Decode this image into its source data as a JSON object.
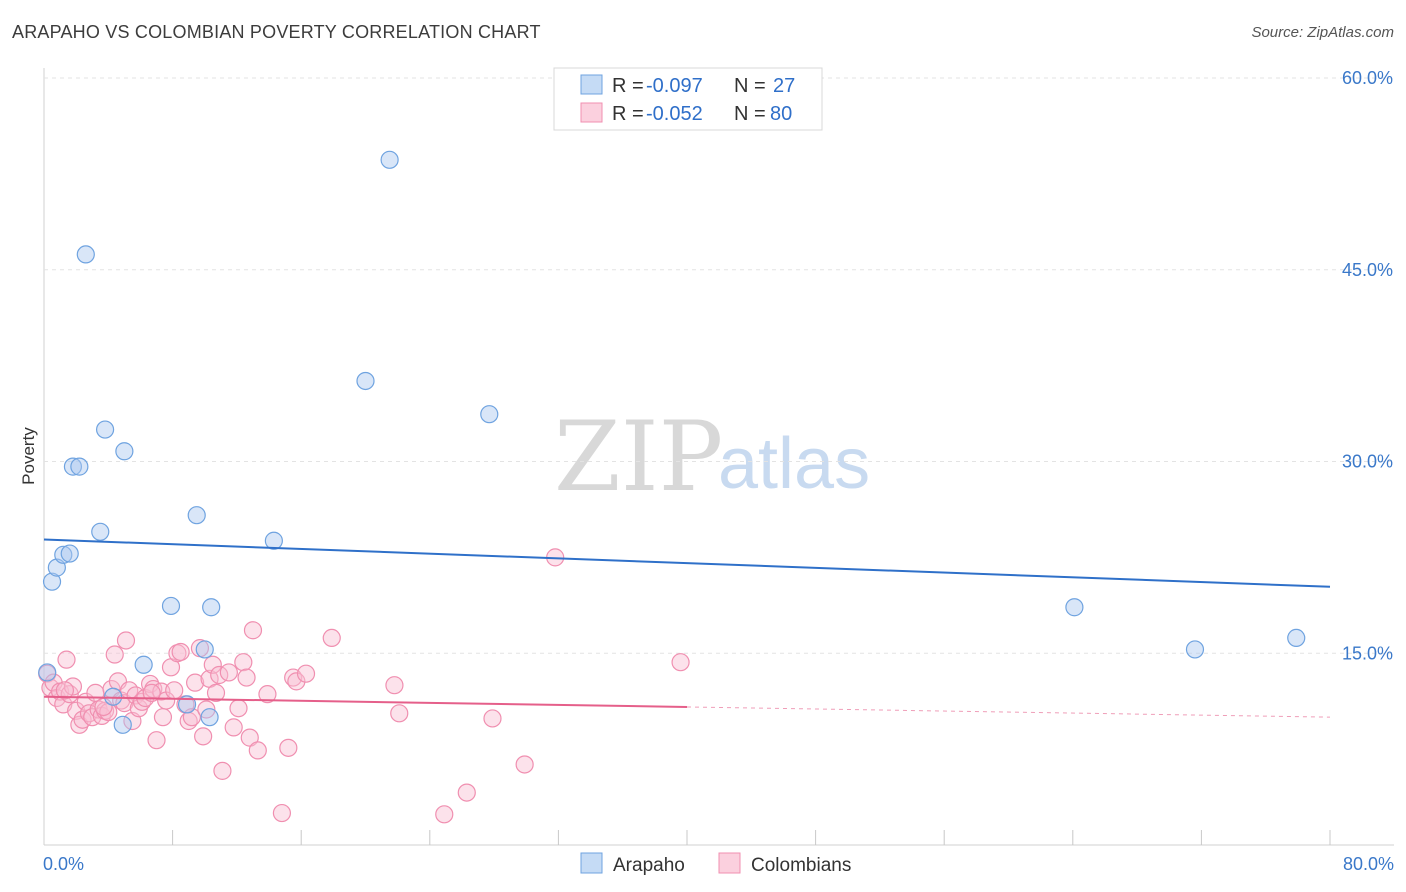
{
  "title": "ARAPAHO VS COLOMBIAN POVERTY CORRELATION CHART",
  "source": "Source: ZipAtlas.com",
  "watermark": {
    "part1": "ZIP",
    "part2": "atlas"
  },
  "legend": {
    "rows": [
      {
        "r_label": "R =",
        "r_value": "-0.097",
        "n_label": "N =",
        "n_value": "27"
      },
      {
        "r_label": "R =",
        "r_value": "-0.052",
        "n_label": "N =",
        "n_value": "80"
      }
    ]
  },
  "bottom_legend": [
    "Arapaho",
    "Colombians"
  ],
  "chart_data": {
    "type": "scatter",
    "title": "ARAPAHO VS COLOMBIAN POVERTY CORRELATION CHART",
    "xlabel": "",
    "ylabel": "Poverty",
    "xlim": [
      0,
      80
    ],
    "ylim": [
      0,
      60
    ],
    "x_tick_labels": [
      "0.0%",
      "80.0%"
    ],
    "y_ticks": [
      15,
      30,
      45,
      60
    ],
    "y_tick_labels": [
      "15.0%",
      "30.0%",
      "45.0%",
      "60.0%"
    ],
    "colors": {
      "arapaho": "#6fa3e0",
      "arapaho_line": "#2f70c9",
      "colombians": "#f08fb0",
      "colombians_line": "#e55f8a"
    },
    "series": [
      {
        "name": "Arapaho",
        "r": -0.097,
        "n": 27,
        "trend": {
          "x0": 0,
          "y0": 23.9,
          "x1": 80,
          "y1": 20.2,
          "solid_to": 80
        },
        "points": [
          [
            0.2,
            13.5
          ],
          [
            0.5,
            20.6
          ],
          [
            0.8,
            21.7
          ],
          [
            1.2,
            22.7
          ],
          [
            1.6,
            22.8
          ],
          [
            1.8,
            29.6
          ],
          [
            2.2,
            29.6
          ],
          [
            2.6,
            46.2
          ],
          [
            3.5,
            24.5
          ],
          [
            3.8,
            32.5
          ],
          [
            5.0,
            30.8
          ],
          [
            4.3,
            11.6
          ],
          [
            4.9,
            9.4
          ],
          [
            6.2,
            14.1
          ],
          [
            7.9,
            18.7
          ],
          [
            8.9,
            11.0
          ],
          [
            9.5,
            25.8
          ],
          [
            10.0,
            15.3
          ],
          [
            10.3,
            10.0
          ],
          [
            10.4,
            18.6
          ],
          [
            14.3,
            23.8
          ],
          [
            20.0,
            36.3
          ],
          [
            21.5,
            53.6
          ],
          [
            27.7,
            33.7
          ],
          [
            64.1,
            18.6
          ],
          [
            71.6,
            15.3
          ],
          [
            77.9,
            16.2
          ]
        ]
      },
      {
        "name": "Colombians",
        "r": -0.052,
        "n": 80,
        "trend": {
          "x0": 0,
          "y0": 11.6,
          "x1": 80,
          "y1": 10.0,
          "solid_to": 40
        },
        "points": [
          [
            0.2,
            13.4
          ],
          [
            0.4,
            12.3
          ],
          [
            0.6,
            12.7
          ],
          [
            0.8,
            11.5
          ],
          [
            1.0,
            12.0
          ],
          [
            1.2,
            11.0
          ],
          [
            1.4,
            14.5
          ],
          [
            1.6,
            11.8
          ],
          [
            1.8,
            12.4
          ],
          [
            2.0,
            10.5
          ],
          [
            2.2,
            9.4
          ],
          [
            2.4,
            9.8
          ],
          [
            2.6,
            11.2
          ],
          [
            2.8,
            10.3
          ],
          [
            3.0,
            10.0
          ],
          [
            3.2,
            11.9
          ],
          [
            3.4,
            10.6
          ],
          [
            3.6,
            10.1
          ],
          [
            3.8,
            10.5
          ],
          [
            4.0,
            10.4
          ],
          [
            4.2,
            12.2
          ],
          [
            4.4,
            14.9
          ],
          [
            4.6,
            12.8
          ],
          [
            4.8,
            11.3
          ],
          [
            5.0,
            11.1
          ],
          [
            5.1,
            16.0
          ],
          [
            5.3,
            12.1
          ],
          [
            5.5,
            9.7
          ],
          [
            5.7,
            11.7
          ],
          [
            5.9,
            10.7
          ],
          [
            6.1,
            11.2
          ],
          [
            6.3,
            11.5
          ],
          [
            6.6,
            12.6
          ],
          [
            6.8,
            12.2
          ],
          [
            7.0,
            8.2
          ],
          [
            7.3,
            12.0
          ],
          [
            7.4,
            10.0
          ],
          [
            7.6,
            11.3
          ],
          [
            7.9,
            13.9
          ],
          [
            8.1,
            12.1
          ],
          [
            8.3,
            15.0
          ],
          [
            8.5,
            15.1
          ],
          [
            8.8,
            11.0
          ],
          [
            9.0,
            9.7
          ],
          [
            9.2,
            10.0
          ],
          [
            9.4,
            12.7
          ],
          [
            9.7,
            15.4
          ],
          [
            9.9,
            8.5
          ],
          [
            10.1,
            10.6
          ],
          [
            10.3,
            13.0
          ],
          [
            10.5,
            14.1
          ],
          [
            10.7,
            11.9
          ],
          [
            10.9,
            13.3
          ],
          [
            11.1,
            5.8
          ],
          [
            11.5,
            13.5
          ],
          [
            11.8,
            9.2
          ],
          [
            12.1,
            10.7
          ],
          [
            12.4,
            14.3
          ],
          [
            12.6,
            13.1
          ],
          [
            12.8,
            8.4
          ],
          [
            13.0,
            16.8
          ],
          [
            13.3,
            7.4
          ],
          [
            13.9,
            11.8
          ],
          [
            14.8,
            2.5
          ],
          [
            15.2,
            7.6
          ],
          [
            15.5,
            13.1
          ],
          [
            15.7,
            12.8
          ],
          [
            16.3,
            13.4
          ],
          [
            17.9,
            16.2
          ],
          [
            21.8,
            12.5
          ],
          [
            22.1,
            10.3
          ],
          [
            24.9,
            2.4
          ],
          [
            26.3,
            4.1
          ],
          [
            27.9,
            9.9
          ],
          [
            29.9,
            6.3
          ],
          [
            31.8,
            22.5
          ],
          [
            39.6,
            14.3
          ],
          [
            1.3,
            12.1
          ],
          [
            3.7,
            10.8
          ],
          [
            6.7,
            11.9
          ]
        ]
      }
    ]
  }
}
